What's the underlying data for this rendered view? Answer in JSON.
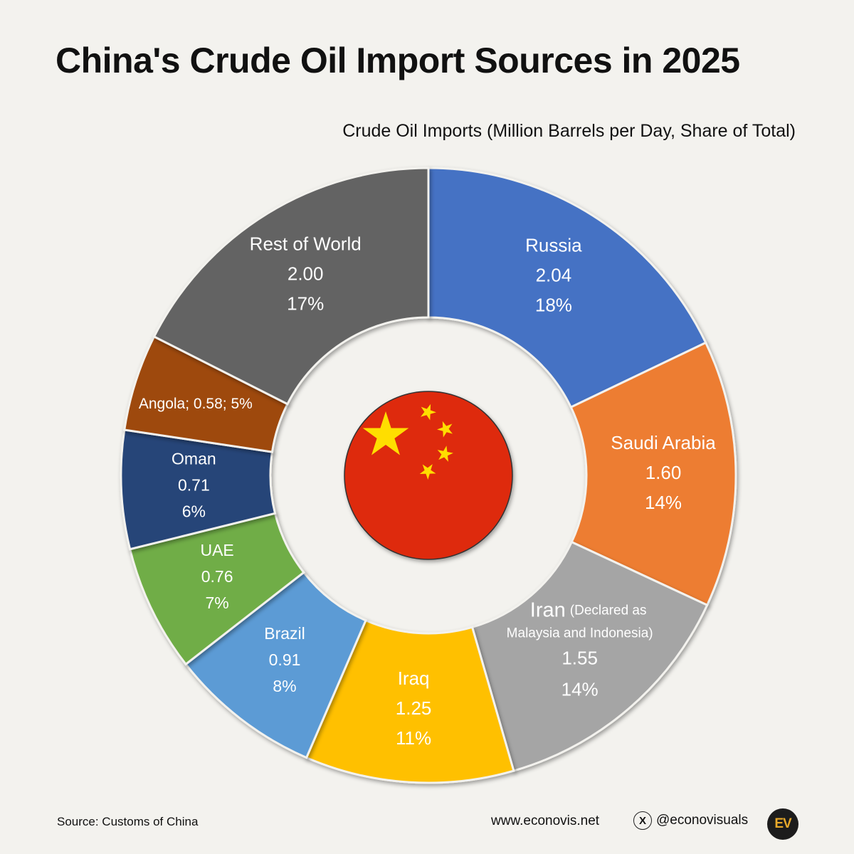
{
  "title": "China's Crude Oil Import Sources in 2025",
  "chart_data": {
    "type": "pie",
    "title": "China's Crude Oil Import Sources in 2025",
    "subtitle": "Crude Oil Imports (Million Barrels per Day, Share of Total)",
    "unit": "Million Barrels per Day",
    "series": [
      {
        "categories": [
          "Russia",
          "Saudi Arabia",
          "Iran",
          "Iraq",
          "Brazil",
          "UAE",
          "Oman",
          "Angola",
          "Rest of World"
        ],
        "values": [
          2.04,
          1.6,
          1.55,
          1.25,
          0.91,
          0.76,
          0.71,
          0.58,
          2.0
        ],
        "shares": [
          "18%",
          "14%",
          "14%",
          "11%",
          "8%",
          "7%",
          "6%",
          "5%",
          "17%"
        ],
        "value_labels": [
          "2.04",
          "1.60",
          "1.55",
          "1.25",
          "0.91",
          "0.76",
          "0.71",
          "0.58",
          "2.00"
        ],
        "notes": [
          "",
          "",
          "(Declared as Malaysia and Indonesia)",
          "",
          "",
          "",
          "",
          "",
          ""
        ],
        "colors": [
          "#4472c4",
          "#ed7d31",
          "#a5a5a5",
          "#ffc000",
          "#5b9bd5",
          "#70ad47",
          "#264478",
          "#9e480e",
          "#636363"
        ]
      }
    ],
    "inline_label": "Angola; 0.58; 5%",
    "note_line1": "(Declared as",
    "note_line2": "Malaysia and Indonesia)"
  },
  "footer": {
    "source": "Source: Customs of China",
    "website": "www.econovis.net",
    "handle": "@econovisuals",
    "x_icon": "X",
    "logo": "EV"
  },
  "flag": {
    "red": "#de2910",
    "yellow": "#ffde00"
  }
}
